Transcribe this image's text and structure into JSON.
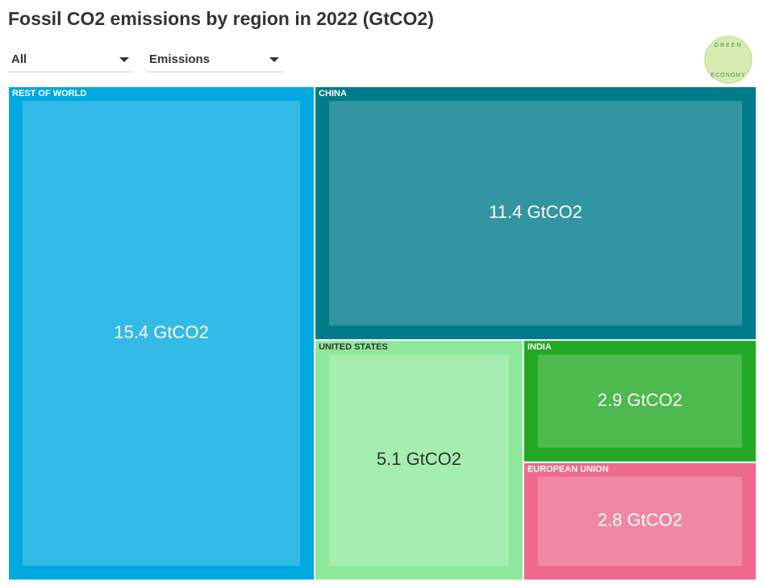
{
  "chart_data": {
    "type": "treemap",
    "title": "Fossil CO2 emissions by region in 2022 (GtCO2)",
    "controls": [
      "All",
      "Emissions"
    ],
    "logo": [
      "GREEN",
      "ECONOMY"
    ],
    "categories": [
      "REST OF WORLD",
      "CHINA",
      "UNITED STATES",
      "INDIA",
      "EUROPEAN UNION"
    ],
    "values": [
      15.4,
      11.4,
      5.1,
      2.9,
      2.8
    ],
    "value_labels": [
      "15.4 GtCO2",
      "11.4 GtCO2",
      "5.1 GtCO2",
      "2.9 GtCO2",
      "2.8 GtCO2"
    ],
    "colors": [
      "#00a9e0",
      "#007b8a",
      "#8ee89c",
      "#22a822",
      "#ee6a8c"
    ]
  }
}
